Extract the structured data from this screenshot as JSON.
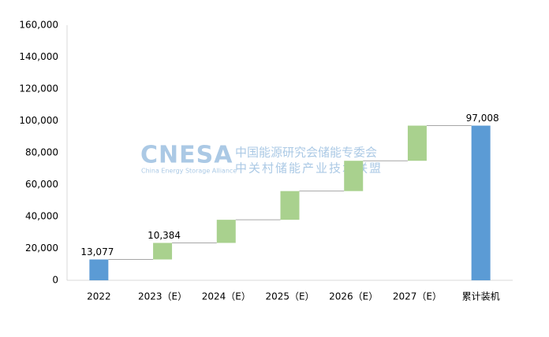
{
  "chart_data": {
    "type": "waterfall",
    "categories": [
      "2022",
      "2023（E）",
      "2024（E）",
      "2025（E）",
      "2026（E）",
      "2027（E）",
      "累计装机"
    ],
    "values": [
      13077,
      10384,
      14500,
      18000,
      19000,
      22047,
      97008
    ],
    "value_labels": [
      "13,077",
      "10,384",
      null,
      null,
      null,
      null,
      "97,008"
    ],
    "measure": [
      "absolute",
      "relative",
      "relative",
      "relative",
      "relative",
      "relative",
      "total"
    ],
    "colors": {
      "absolute": "#5b9bd5",
      "relative": "#a9d18e",
      "total": "#5b9bd5"
    },
    "ylim": [
      0,
      160000
    ],
    "yticks": [
      0,
      {
        "value": 20000,
        "label": "20,000"
      },
      {
        "value": 40000,
        "label": "40,000"
      },
      {
        "value": 60000,
        "label": "60,000"
      },
      {
        "value": 80000,
        "label": "80,000"
      },
      {
        "value": 100000,
        "label": "100,000"
      },
      {
        "value": 120000,
        "label": "120,000"
      },
      {
        "value": 140000,
        "label": "140,000"
      },
      {
        "value": 160000,
        "label": "160,000"
      }
    ],
    "watermark": {
      "logo": "CNESA",
      "org_cn_1": "中国能源研究会储能专委会",
      "org_cn_2": "中关村储能产业技术联盟",
      "org_en": "China Energy Storage Alliance"
    }
  }
}
